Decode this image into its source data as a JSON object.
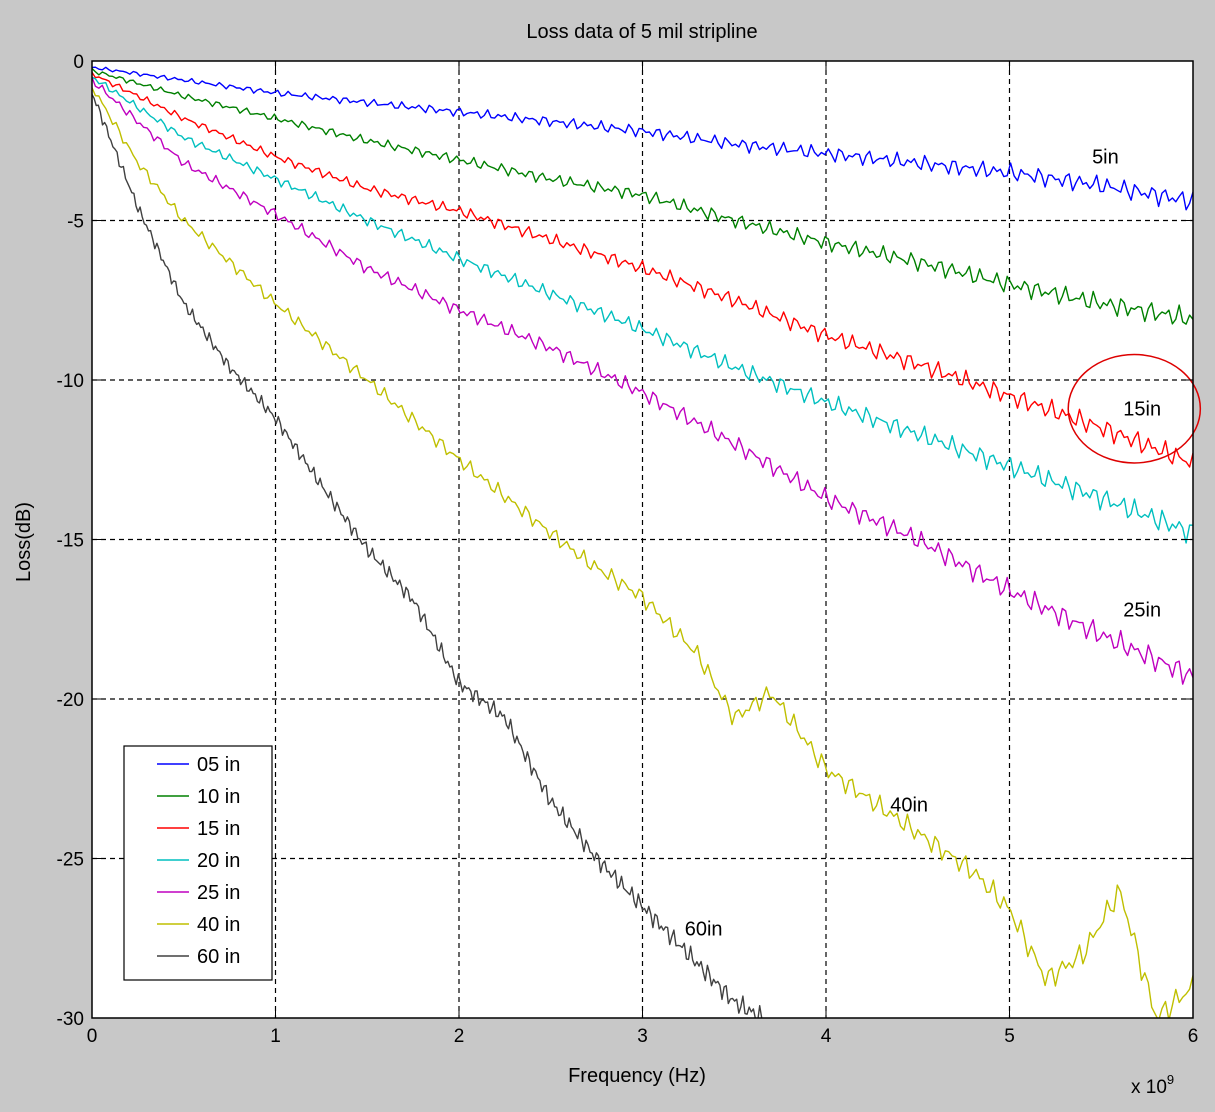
{
  "figure": {
    "background": "#c8c8c8",
    "axes_background": "#ffffff"
  },
  "chart_data": {
    "type": "line",
    "title": "Loss data of 5 mil stripline",
    "xlabel": "Frequency (Hz)",
    "ylabel": "Loss(dB)",
    "x_multiplier_label": "x 10",
    "x_multiplier_exp": "9",
    "xlim": [
      0,
      6
    ],
    "ylim": [
      -30,
      0
    ],
    "xticks": [
      0,
      1,
      2,
      3,
      4,
      5,
      6
    ],
    "xtick_labels": [
      "0",
      "1",
      "2",
      "3",
      "4",
      "5",
      "6"
    ],
    "yticks": [
      0,
      -5,
      -10,
      -15,
      -20,
      -25,
      -30
    ],
    "ytick_labels": [
      "0",
      "-5",
      "-10",
      "-15",
      "-20",
      "-25",
      "-30"
    ],
    "grid": true,
    "legend_position": "lower-left",
    "series": [
      {
        "name": "05 in",
        "color": "#0000ff",
        "x": [
          0,
          0.5,
          1,
          1.5,
          2,
          2.5,
          3,
          3.5,
          4,
          4.5,
          5,
          5.5,
          6
        ],
        "y": [
          -0.2,
          -0.6,
          -1.0,
          -1.3,
          -1.6,
          -1.9,
          -2.2,
          -2.6,
          -2.9,
          -3.2,
          -3.5,
          -3.9,
          -4.4
        ]
      },
      {
        "name": "10 in",
        "color": "#008000",
        "x": [
          0,
          0.5,
          1,
          1.5,
          2,
          2.5,
          3,
          3.5,
          4,
          4.5,
          5,
          5.5,
          6
        ],
        "y": [
          -0.3,
          -1.1,
          -1.8,
          -2.5,
          -3.1,
          -3.7,
          -4.2,
          -5.0,
          -5.7,
          -6.3,
          -7.0,
          -7.6,
          -8.1
        ]
      },
      {
        "name": "15 in",
        "color": "#ff0000",
        "x": [
          0,
          0.5,
          1,
          1.5,
          2,
          2.5,
          3,
          3.5,
          4,
          4.5,
          5,
          5.5,
          6
        ],
        "y": [
          -0.4,
          -1.8,
          -3.0,
          -4.0,
          -4.7,
          -5.6,
          -6.5,
          -7.5,
          -8.6,
          -9.5,
          -10.5,
          -11.5,
          -12.6
        ]
      },
      {
        "name": "20 in",
        "color": "#00bfbf",
        "x": [
          0,
          0.5,
          1,
          1.5,
          2,
          2.5,
          3,
          3.5,
          4,
          4.5,
          5,
          5.5,
          6
        ],
        "y": [
          -0.5,
          -2.4,
          -3.7,
          -5.0,
          -6.2,
          -7.3,
          -8.4,
          -9.6,
          -10.7,
          -11.7,
          -12.7,
          -13.7,
          -14.8
        ]
      },
      {
        "name": "25 in",
        "color": "#bf00bf",
        "x": [
          0,
          0.5,
          1,
          1.5,
          2,
          2.5,
          3,
          3.5,
          4,
          4.5,
          5,
          5.5,
          6
        ],
        "y": [
          -0.6,
          -3.2,
          -4.8,
          -6.5,
          -7.8,
          -9.0,
          -10.4,
          -12.0,
          -13.7,
          -15.0,
          -16.6,
          -18.0,
          -19.3
        ]
      },
      {
        "name": "40 in",
        "color": "#bfbf00",
        "x": [
          0,
          0.25,
          0.5,
          1,
          1.5,
          2,
          2.5,
          2.7,
          3,
          3.3,
          3.5,
          3.7,
          4,
          4.5,
          4.8,
          5,
          5.2,
          5.4,
          5.6,
          5.8,
          6
        ],
        "y": [
          -0.8,
          -3.2,
          -5.0,
          -7.6,
          -10.0,
          -12.5,
          -14.8,
          -15.7,
          -16.8,
          -18.6,
          -20.6,
          -19.8,
          -22.2,
          -24.2,
          -25.4,
          -26.6,
          -28.8,
          -28.0,
          -26.0,
          -30.0,
          -29.0
        ]
      },
      {
        "name": "60 in",
        "color": "#404040",
        "x": [
          0,
          0.25,
          0.5,
          0.75,
          1,
          1.25,
          1.5,
          1.75,
          2,
          2.25,
          2.5,
          2.75,
          3,
          3.25,
          3.5,
          3.65
        ],
        "y": [
          -1.0,
          -4.6,
          -7.6,
          -9.6,
          -11.2,
          -13.3,
          -15.3,
          -16.9,
          -19.5,
          -20.6,
          -23.2,
          -25.0,
          -26.5,
          -28.0,
          -29.5,
          -30.0
        ]
      }
    ],
    "annotations": [
      {
        "text": "5in",
        "x": 5.45,
        "y": -3.0
      },
      {
        "text": "15in",
        "x": 5.62,
        "y": -10.9
      },
      {
        "text": "25in",
        "x": 5.62,
        "y": -17.2
      },
      {
        "text": "40in",
        "x": 4.35,
        "y": -23.3
      },
      {
        "text": "60in",
        "x": 3.23,
        "y": -27.2
      }
    ],
    "highlight_ellipse": {
      "color": "#dd0000",
      "cx": 5.68,
      "cy": -10.9,
      "rx": 0.36,
      "ry": 1.7
    }
  }
}
